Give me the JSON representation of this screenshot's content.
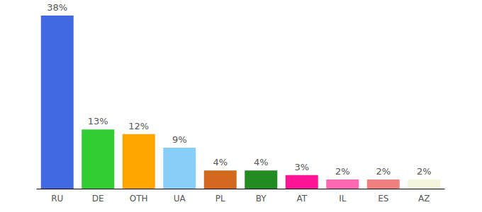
{
  "chart_data": {
    "type": "bar",
    "categories": [
      "RU",
      "DE",
      "OTH",
      "UA",
      "PL",
      "BY",
      "AT",
      "IL",
      "ES",
      "AZ"
    ],
    "values": [
      38,
      13,
      12,
      9,
      4,
      4,
      3,
      2,
      2,
      2
    ],
    "value_labels": [
      "38%",
      "13%",
      "12%",
      "9%",
      "4%",
      "4%",
      "3%",
      "2%",
      "2%",
      "2%"
    ],
    "colors": [
      "#4169e1",
      "#32cd32",
      "#ffa500",
      "#87cefa",
      "#d2691e",
      "#228b22",
      "#ff1493",
      "#ff69b4",
      "#f08080",
      "#f5f5dc"
    ],
    "data_labels": true,
    "tick_labels": "x",
    "grid": false
  }
}
